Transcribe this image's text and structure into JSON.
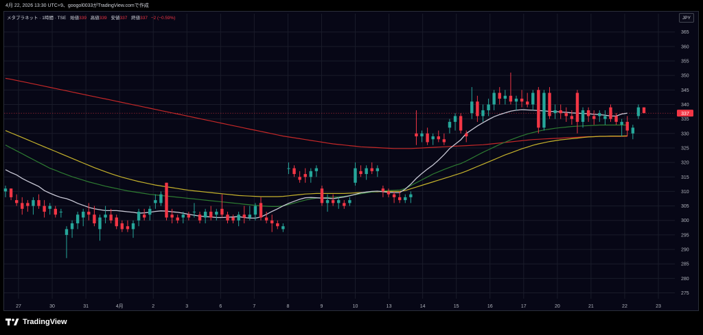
{
  "header": {
    "meta": "4月 22, 2026 13:30 UTC+9、googol0033がTradingView.comで作成"
  },
  "legend": {
    "symbol": "メタプラネット · 1時間 · TSE",
    "open_label": "始値",
    "open_value": "339",
    "high_label": "高値",
    "high_value": "339",
    "low_label": "安値",
    "low_value": "337",
    "close_label": "終値",
    "close_value": "337",
    "change": "−2 (−0.59%)"
  },
  "currency_button": "JPY",
  "footer": {
    "brand": "TradingView"
  },
  "colors": {
    "up": "#26a69a",
    "down": "#f23645",
    "ma_white": "#c9c9d6",
    "ma_green": "#2e7d32",
    "ma_yellow": "#c7b42c",
    "ma_red": "#c62828",
    "grid": "#1a1c2a",
    "axis_text": "#b2b5be"
  },
  "chart_data": {
    "type": "candlestick",
    "ylim": [
      273,
      368
    ],
    "y_ticks": [
      365,
      360,
      355,
      350,
      345,
      340,
      335,
      330,
      325,
      320,
      315,
      310,
      305,
      300,
      295,
      290,
      285,
      280,
      275
    ],
    "x_tick_labels": [
      "27",
      "30",
      "31",
      "4月",
      "2",
      "3",
      "6",
      "7",
      "8",
      "9",
      "10",
      "13",
      "14",
      "15",
      "16",
      "17",
      "20",
      "21",
      "22",
      "23"
    ],
    "last_price_label": "337",
    "last_price": 337,
    "grid": true,
    "candles": [
      [
        310,
        312,
        308,
        311
      ],
      [
        311,
        311,
        307,
        308
      ],
      [
        307,
        309,
        305,
        306
      ],
      [
        306,
        308,
        302,
        304
      ],
      [
        306,
        307,
        303,
        305
      ],
      [
        305,
        308,
        302,
        307
      ],
      [
        307,
        309,
        304,
        305
      ],
      [
        305,
        307,
        301,
        303
      ],
      [
        304,
        306,
        302,
        305
      ],
      [
        304,
        305,
        301,
        302
      ],
      [
        303,
        304,
        301,
        303
      ],
      [
        295,
        298,
        287,
        297
      ],
      [
        297,
        300,
        294,
        299
      ],
      [
        299,
        303,
        297,
        302
      ],
      [
        301,
        304,
        298,
        303
      ],
      [
        303,
        306,
        300,
        302
      ],
      [
        302,
        305,
        298,
        299
      ],
      [
        297,
        302,
        293,
        301
      ],
      [
        301,
        305,
        299,
        302
      ],
      [
        302,
        304,
        299,
        300
      ],
      [
        301,
        302,
        297,
        298
      ],
      [
        299,
        300,
        296,
        297
      ],
      [
        298,
        300,
        296,
        297
      ],
      [
        297,
        300,
        294,
        299
      ],
      [
        300,
        304,
        298,
        303
      ],
      [
        302,
        304,
        300,
        301
      ],
      [
        302,
        305,
        300,
        304
      ],
      [
        306,
        309,
        304,
        307
      ],
      [
        306,
        310,
        305,
        309
      ],
      [
        313,
        313,
        300,
        301
      ],
      [
        302,
        304,
        299,
        301
      ],
      [
        301,
        302,
        299,
        300
      ],
      [
        301,
        303,
        299,
        302
      ],
      [
        302,
        303,
        300,
        301
      ],
      [
        303,
        306,
        301,
        303
      ],
      [
        302,
        303,
        299,
        300
      ],
      [
        301,
        304,
        299,
        303
      ],
      [
        303,
        305,
        300,
        301
      ],
      [
        302,
        304,
        300,
        303
      ],
      [
        304,
        309,
        301,
        302
      ],
      [
        302,
        303,
        299,
        300
      ],
      [
        301,
        302,
        299,
        300
      ],
      [
        300,
        303,
        298,
        302
      ],
      [
        302,
        305,
        299,
        301
      ],
      [
        301,
        305,
        300,
        302
      ],
      [
        302,
        306,
        300,
        305
      ],
      [
        306,
        308,
        300,
        301
      ],
      [
        301,
        303,
        299,
        300
      ],
      [
        300,
        302,
        296,
        299
      ],
      [
        299,
        300,
        297,
        298
      ],
      [
        297,
        299,
        296,
        298
      ],
      [
        318,
        320,
        316,
        318
      ],
      [
        318,
        319,
        315,
        316
      ],
      [
        315,
        317,
        313,
        314
      ],
      [
        316,
        318,
        313,
        315
      ],
      [
        315,
        318,
        313,
        317
      ],
      [
        317,
        319,
        315,
        318
      ],
      [
        311,
        312,
        305,
        306
      ],
      [
        306,
        309,
        303,
        307
      ],
      [
        307,
        309,
        305,
        306
      ],
      [
        306,
        308,
        304,
        307
      ],
      [
        306,
        307,
        304,
        305
      ],
      [
        306,
        308,
        305,
        307
      ],
      [
        313,
        320,
        312,
        318
      ],
      [
        317,
        319,
        315,
        316
      ],
      [
        316,
        319,
        314,
        318
      ],
      [
        318,
        320,
        316,
        317
      ],
      [
        317,
        319,
        315,
        318
      ],
      [
        311,
        312,
        308,
        310
      ],
      [
        310,
        311,
        308,
        309
      ],
      [
        309,
        310,
        306,
        308
      ],
      [
        308,
        310,
        306,
        307
      ],
      [
        307,
        309,
        306,
        308
      ],
      [
        308,
        310,
        306,
        309
      ],
      [
        330,
        338,
        326,
        329
      ],
      [
        329,
        331,
        327,
        330
      ],
      [
        330,
        332,
        326,
        327
      ],
      [
        328,
        330,
        326,
        329
      ],
      [
        329,
        331,
        327,
        328
      ],
      [
        328,
        330,
        326,
        327
      ],
      [
        332,
        335,
        330,
        334
      ],
      [
        334,
        337,
        331,
        336
      ],
      [
        336,
        337,
        330,
        331
      ],
      [
        330,
        331,
        327,
        329
      ],
      [
        337,
        346,
        335,
        341
      ],
      [
        341,
        343,
        334,
        336
      ],
      [
        336,
        340,
        334,
        338
      ],
      [
        338,
        342,
        336,
        340
      ],
      [
        340,
        345,
        338,
        344
      ],
      [
        344,
        346,
        340,
        342
      ],
      [
        342,
        345,
        340,
        343
      ],
      [
        343,
        351,
        340,
        341
      ],
      [
        341,
        343,
        338,
        342
      ],
      [
        342,
        345,
        339,
        341
      ],
      [
        341,
        344,
        339,
        340
      ],
      [
        340,
        345,
        338,
        344
      ],
      [
        345,
        346,
        330,
        332
      ],
      [
        332,
        345,
        331,
        344
      ],
      [
        344,
        346,
        335,
        336
      ],
      [
        337,
        340,
        335,
        338
      ],
      [
        338,
        340,
        335,
        337
      ],
      [
        337,
        339,
        334,
        336
      ],
      [
        336,
        338,
        333,
        335
      ],
      [
        344,
        345,
        330,
        334
      ],
      [
        334,
        339,
        332,
        338
      ],
      [
        338,
        339,
        334,
        336
      ],
      [
        336,
        338,
        333,
        335
      ],
      [
        336,
        338,
        334,
        337
      ],
      [
        335,
        338,
        333,
        336
      ],
      [
        339,
        340,
        334,
        335
      ],
      [
        336,
        337,
        333,
        334
      ],
      [
        333,
        335,
        329,
        334
      ],
      [
        334,
        336,
        329,
        331
      ],
      [
        330,
        333,
        328,
        332
      ],
      [
        336,
        340,
        335,
        339
      ],
      [
        339,
        339,
        337,
        337
      ]
    ],
    "series": [
      {
        "values": [
          317.5,
          316.5,
          315.7,
          314.5,
          313.5,
          312.6,
          311.7,
          310.3,
          309.4,
          308.6,
          307.9,
          307.5,
          306.8,
          305.9,
          305.2,
          304.5,
          304.0,
          303.7,
          303.4,
          303.4,
          303.4,
          303.2,
          303.0,
          302.8,
          302.5,
          302.6,
          302.8,
          303.1,
          303.3,
          303.2,
          303.0,
          302.8,
          302.5,
          302.1,
          301.8,
          301.5,
          301.3,
          301.2,
          301.0,
          301.0,
          301.1,
          301.2,
          301.3,
          301.0,
          300.8,
          300.8,
          301.2,
          302.1,
          303.1,
          304.0,
          305.0,
          305.9,
          306.6,
          307.3,
          307.8,
          307.9,
          307.8,
          307.7,
          307.7,
          307.5,
          307.8,
          308.1,
          308.5,
          309.0,
          309.5,
          309.8,
          310.0,
          310.1,
          309.9,
          309.7,
          309.6,
          309.6,
          310.8,
          312.5,
          314.5,
          316.2,
          317.7,
          319.1,
          320.8,
          322.7,
          324.8,
          326.3,
          327.8,
          330.0,
          331.3,
          332.6,
          333.7,
          334.8,
          335.8,
          336.5,
          337.1,
          337.7,
          338.0,
          338.2,
          338.1,
          338.0,
          337.9,
          337.8,
          337.6,
          337.6,
          337.4,
          337.3,
          337.1,
          337.0,
          336.9,
          336.8,
          336.6,
          336.5,
          336.3,
          336.0,
          336.0,
          336.7,
          337.0
        ]
      },
      {
        "values": [
          326.0,
          325.0,
          324.0,
          323.0,
          322.0,
          321.0,
          320.0,
          319.0,
          318.0,
          317.3,
          316.5,
          315.8,
          315.1,
          314.5,
          313.9,
          313.3,
          312.8,
          312.3,
          311.8,
          311.4,
          311.0,
          310.6,
          310.2,
          309.9,
          309.6,
          309.3,
          309.0,
          308.8,
          308.6,
          308.4,
          308.2,
          308.0,
          307.8,
          307.6,
          307.4,
          307.2,
          307.0,
          306.8,
          306.6,
          306.4,
          306.2,
          306.0,
          305.8,
          305.6,
          305.4,
          305.2,
          305.0,
          304.9,
          304.8,
          304.8,
          305.0,
          305.5,
          306.0,
          306.5,
          307.0,
          307.4,
          307.7,
          307.8,
          307.9,
          308.0,
          308.1,
          308.3,
          308.6,
          308.9,
          309.2,
          309.5,
          309.8,
          310.0,
          310.2,
          310.3,
          310.4,
          310.5,
          311.0,
          312.0,
          313.0,
          314.0,
          315.0,
          316.0,
          316.8,
          317.6,
          318.3,
          319.0,
          319.6,
          320.5,
          321.5,
          322.5,
          323.5,
          324.4,
          325.3,
          326.2,
          327.0,
          327.8,
          328.5,
          329.2,
          329.8,
          330.3,
          330.8,
          331.2,
          331.5,
          331.8,
          332.0,
          332.2,
          332.4,
          332.5,
          332.6,
          332.7,
          332.8,
          332.9,
          332.9,
          332.9,
          332.9,
          332.9,
          332.9
        ]
      },
      {
        "values": [
          331.0,
          330.2,
          329.4,
          328.6,
          327.8,
          327.0,
          326.2,
          325.4,
          324.6,
          323.8,
          323.0,
          322.2,
          321.4,
          320.6,
          319.8,
          319.0,
          318.2,
          317.5,
          316.8,
          316.1,
          315.5,
          314.9,
          314.4,
          313.9,
          313.4,
          313.0,
          312.6,
          312.2,
          311.9,
          311.6,
          311.3,
          311.0,
          310.7,
          310.4,
          310.2,
          310.0,
          309.8,
          309.6,
          309.4,
          309.2,
          309.0,
          308.8,
          308.6,
          308.5,
          308.4,
          308.3,
          308.2,
          308.2,
          308.2,
          308.2,
          308.3,
          308.5,
          308.7,
          308.9,
          309.1,
          309.2,
          309.3,
          309.3,
          309.3,
          309.3,
          309.3,
          309.3,
          309.4,
          309.5,
          309.6,
          309.7,
          309.8,
          309.9,
          310.0,
          310.0,
          310.0,
          310.0,
          310.3,
          310.9,
          311.5,
          312.1,
          312.7,
          313.3,
          313.9,
          314.5,
          315.1,
          315.7,
          316.3,
          317.0,
          317.8,
          318.6,
          319.4,
          320.2,
          321.0,
          321.8,
          322.6,
          323.3,
          324.0,
          324.7,
          325.3,
          325.9,
          326.4,
          326.8,
          327.2,
          327.5,
          327.8,
          328.0,
          328.2,
          328.4,
          328.6,
          328.8,
          328.9,
          329.0,
          329.0,
          329.1,
          329.1,
          329.1,
          329.2
        ]
      },
      {
        "values": [
          349.0,
          348.7,
          348.3,
          347.9,
          347.5,
          347.1,
          346.7,
          346.3,
          345.9,
          345.5,
          345.1,
          344.7,
          344.3,
          343.9,
          343.5,
          343.1,
          342.7,
          342.3,
          341.9,
          341.5,
          341.1,
          340.7,
          340.3,
          339.9,
          339.5,
          339.1,
          338.7,
          338.3,
          337.9,
          337.5,
          337.1,
          336.7,
          336.3,
          335.9,
          335.5,
          335.1,
          334.7,
          334.3,
          333.9,
          333.5,
          333.1,
          332.7,
          332.3,
          331.9,
          331.5,
          331.1,
          330.7,
          330.3,
          329.9,
          329.5,
          329.1,
          328.8,
          328.5,
          328.2,
          327.9,
          327.6,
          327.3,
          327.0,
          326.7,
          326.4,
          326.2,
          326.0,
          325.8,
          325.6,
          325.4,
          325.3,
          325.2,
          325.1,
          325.0,
          324.9,
          324.8,
          324.8,
          324.8,
          324.8,
          324.9,
          325.0,
          325.1,
          325.2,
          325.3,
          325.4,
          325.5,
          325.6,
          325.7,
          325.8,
          325.9,
          326.0,
          326.1,
          326.3,
          326.5,
          326.7,
          326.9,
          327.1,
          327.3,
          327.5,
          327.7,
          327.9,
          328.0,
          328.1,
          328.2,
          328.3,
          328.4,
          328.5,
          328.6,
          328.7,
          328.8,
          328.9,
          328.9,
          329.0,
          329.0,
          329.0,
          329.0,
          329.0,
          329.0
        ]
      }
    ]
  }
}
